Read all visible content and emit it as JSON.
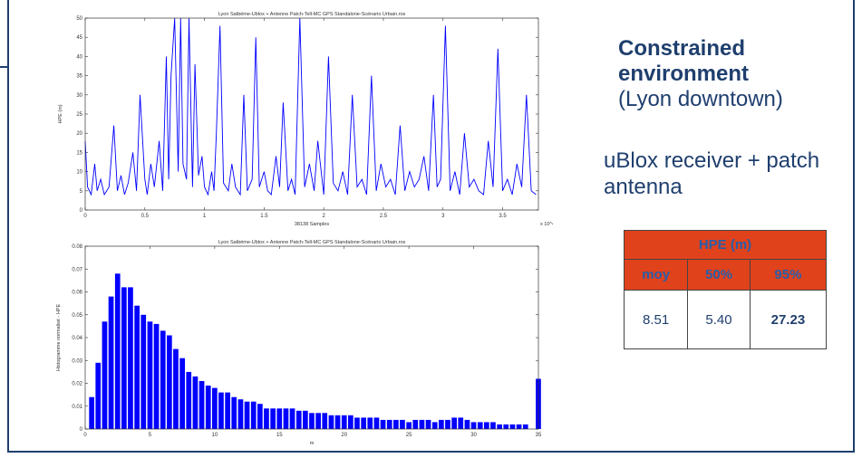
{
  "heading": {
    "line1": "Constrained environment",
    "line2": "(Lyon downtown)"
  },
  "receiver_text": "uBlox receiver + patch antenna",
  "table": {
    "title": "HPE (m)",
    "columns": [
      "moy",
      "50%",
      "95%"
    ],
    "values": [
      "8.51",
      "5.40",
      "27.23"
    ]
  },
  "colors": {
    "frame": "#1f3f6e",
    "series": "#0000ff",
    "table_header": "#e0421c",
    "table_header_text": "#2a5da8"
  },
  "chart_data": [
    {
      "type": "line",
      "title": "Lyon Satbéme-Ublox + Antenne Patch-Tell-MC GPS Standalone-Scénario Urbain.ros",
      "xlabel": "38138 Samples",
      "ylabel": "HPE (m)",
      "x_multiplier": "x 10^4",
      "xlim": [
        0,
        3.8
      ],
      "ylim": [
        0,
        50
      ],
      "xticks": [
        0,
        0.5,
        1,
        1.5,
        2,
        2.5,
        3,
        3.5
      ],
      "xtick_labels": [
        "0",
        "0.5",
        "1",
        "1.5",
        "2",
        "2.5",
        "3",
        "3.5"
      ],
      "yticks": [
        0,
        5,
        10,
        15,
        20,
        25,
        30,
        35,
        40,
        45,
        50
      ],
      "series": [
        {
          "x": [
            0,
            0.02,
            0.05,
            0.08,
            0.1,
            0.13,
            0.16,
            0.2,
            0.24,
            0.27,
            0.3,
            0.33,
            0.36,
            0.4,
            0.43,
            0.46,
            0.5,
            0.52,
            0.55,
            0.58,
            0.62,
            0.65,
            0.68,
            0.7,
            0.72,
            0.75,
            0.78,
            0.8,
            0.82,
            0.85,
            0.87,
            0.9,
            0.92,
            0.95,
            0.98,
            1.0,
            1.03,
            1.06,
            1.08,
            1.1,
            1.13,
            1.16,
            1.2,
            1.23,
            1.26,
            1.3,
            1.33,
            1.36,
            1.4,
            1.43,
            1.46,
            1.5,
            1.53,
            1.56,
            1.6,
            1.63,
            1.66,
            1.7,
            1.73,
            1.76,
            1.8,
            1.84,
            1.88,
            1.92,
            1.95,
            2.0,
            2.04,
            2.08,
            2.12,
            2.16,
            2.2,
            2.24,
            2.28,
            2.32,
            2.36,
            2.4,
            2.44,
            2.48,
            2.52,
            2.56,
            2.6,
            2.64,
            2.68,
            2.72,
            2.76,
            2.8,
            2.84,
            2.88,
            2.92,
            2.95,
            2.98,
            3.02,
            3.06,
            3.1,
            3.14,
            3.18,
            3.22,
            3.26,
            3.3,
            3.34,
            3.38,
            3.42,
            3.46,
            3.5,
            3.54,
            3.58,
            3.62,
            3.66,
            3.7,
            3.74,
            3.78
          ],
          "y": [
            18,
            6,
            4,
            12,
            5,
            8,
            4,
            6,
            22,
            5,
            9,
            4,
            7,
            15,
            5,
            30,
            8,
            4,
            12,
            6,
            18,
            5,
            40,
            8,
            35,
            50,
            10,
            50,
            12,
            8,
            50,
            6,
            38,
            9,
            14,
            6,
            4,
            10,
            5,
            20,
            48,
            7,
            5,
            12,
            6,
            4,
            30,
            5,
            8,
            45,
            6,
            10,
            5,
            4,
            14,
            6,
            28,
            5,
            8,
            4,
            50,
            6,
            12,
            5,
            18,
            4,
            40,
            7,
            5,
            10,
            4,
            30,
            6,
            8,
            4,
            35,
            5,
            12,
            6,
            8,
            4,
            22,
            5,
            10,
            6,
            8,
            14,
            5,
            30,
            6,
            8,
            48,
            5,
            10,
            4,
            20,
            6,
            8,
            5,
            4,
            18,
            6,
            42,
            5,
            8,
            4,
            12,
            6,
            30,
            5,
            4
          ]
        }
      ]
    },
    {
      "type": "bar",
      "title": "Lyon Satbéme-Ublox + Antenne Patch-Tell-MC GPS Standalone-Scénario Urbain.ros",
      "xlabel": "m",
      "ylabel": "Histogramme normalisé - HPE",
      "xlim": [
        0,
        35
      ],
      "ylim": [
        0,
        0.08
      ],
      "xticks": [
        0,
        5,
        10,
        15,
        20,
        25,
        30,
        35
      ],
      "yticks": [
        0,
        0.01,
        0.02,
        0.03,
        0.04,
        0.05,
        0.06,
        0.07,
        0.08
      ],
      "bin_width": 0.5,
      "centers": [
        0.5,
        1,
        1.5,
        2,
        2.5,
        3,
        3.5,
        4,
        4.5,
        5,
        5.5,
        6,
        6.5,
        7,
        7.5,
        8,
        8.5,
        9,
        9.5,
        10,
        10.5,
        11,
        11.5,
        12,
        12.5,
        13,
        13.5,
        14,
        14.5,
        15,
        15.5,
        16,
        16.5,
        17,
        17.5,
        18,
        18.5,
        19,
        19.5,
        20,
        20.5,
        21,
        21.5,
        22,
        22.5,
        23,
        23.5,
        24,
        24.5,
        25,
        25.5,
        26,
        26.5,
        27,
        27.5,
        28,
        28.5,
        29,
        29.5,
        30,
        30.5,
        31,
        31.5,
        32,
        32.5,
        33,
        33.5,
        34,
        35
      ],
      "values": [
        0.014,
        0.029,
        0.047,
        0.058,
        0.068,
        0.062,
        0.062,
        0.054,
        0.05,
        0.047,
        0.046,
        0.043,
        0.041,
        0.035,
        0.031,
        0.025,
        0.023,
        0.021,
        0.019,
        0.018,
        0.016,
        0.016,
        0.014,
        0.013,
        0.012,
        0.012,
        0.011,
        0.009,
        0.009,
        0.009,
        0.009,
        0.009,
        0.008,
        0.008,
        0.007,
        0.007,
        0.007,
        0.006,
        0.006,
        0.006,
        0.006,
        0.005,
        0.005,
        0.005,
        0.005,
        0.004,
        0.004,
        0.004,
        0.004,
        0.003,
        0.004,
        0.004,
        0.004,
        0.003,
        0.004,
        0.004,
        0.005,
        0.005,
        0.004,
        0.003,
        0.003,
        0.003,
        0.003,
        0.002,
        0.002,
        0.002,
        0.002,
        0.002,
        0.022
      ]
    }
  ]
}
